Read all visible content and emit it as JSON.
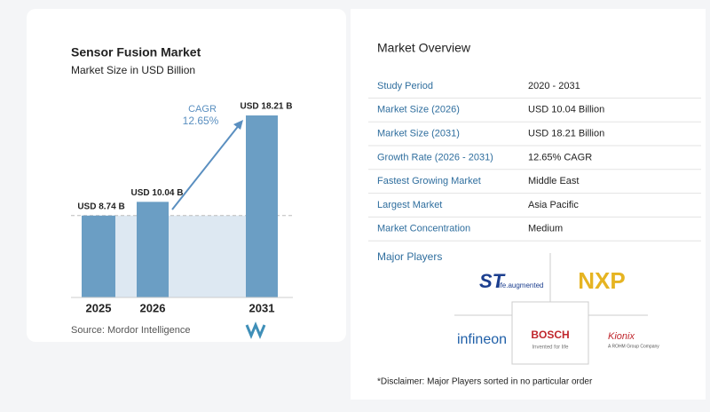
{
  "chart_data": {
    "type": "bar",
    "title": "Sensor Fusion Market",
    "subtitle": "Market Size in USD Billion",
    "categories": [
      "2025",
      "2026",
      "2031"
    ],
    "values": [
      8.74,
      10.04,
      18.21
    ],
    "value_labels": [
      "USD 8.74 B",
      "USD 10.04 B",
      "USD 18.21 B"
    ],
    "color": "#6b9ec4",
    "ylim": [
      1,
      19
    ],
    "annotation": {
      "label": "CAGR",
      "value": "12.65%"
    },
    "source": "Source:  Mordor Intelligence"
  },
  "overview": {
    "title": "Market Overview",
    "rows": [
      [
        "Study Period",
        "2020 - 2031"
      ],
      [
        "Market Size (2026)",
        "USD 10.04 Billion"
      ],
      [
        "Market Size (2031)",
        "USD 18.21 Billion"
      ],
      [
        "Growth Rate (2026 - 2031)",
        "12.65% CAGR"
      ],
      [
        "Fastest Growing Market",
        "Middle East"
      ],
      [
        "Largest Market",
        "Asia Pacific"
      ],
      [
        "Market Concentration",
        "Medium"
      ]
    ]
  },
  "players": {
    "title": "Major Players",
    "logos": [
      {
        "name": "ST",
        "tagline": "life.augmented"
      },
      {
        "name": "NXP"
      },
      {
        "name": "infineon"
      },
      {
        "name": "BOSCH",
        "tagline": "Invented for life"
      },
      {
        "name": "Kionix",
        "tagline": "A ROHM Group Company"
      }
    ],
    "disclaimer": "*Disclaimer: Major Players sorted in no particular order"
  }
}
